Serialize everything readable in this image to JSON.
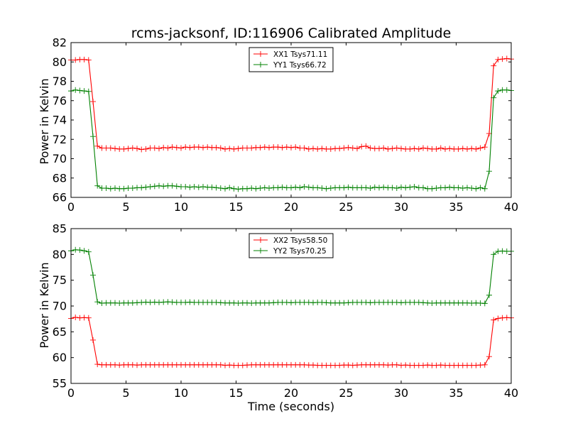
{
  "chart_data": [
    {
      "type": "line",
      "title": "rcms-jacksonf, ID:116906 Calibrated Amplitude",
      "xlabel": "",
      "ylabel": "Power in Kelvin",
      "xlim": [
        0,
        40
      ],
      "ylim": [
        66,
        82
      ],
      "xticks": [
        0,
        5,
        10,
        15,
        20,
        25,
        30,
        35,
        40
      ],
      "yticks": [
        66,
        68,
        70,
        72,
        74,
        76,
        78,
        80,
        82
      ],
      "grid": false,
      "legend": "top-center",
      "marker": "plus",
      "series": [
        {
          "name": "XX1 Tsys71.11",
          "color": "#ff0000",
          "x": [
            0,
            0.4,
            0.8,
            1.2,
            1.6,
            2.0,
            2.4,
            2.8,
            3.2,
            3.6,
            4.0,
            4.4,
            4.8,
            5.2,
            5.6,
            6.0,
            6.4,
            6.8,
            7.2,
            7.6,
            8.0,
            8.4,
            8.8,
            9.2,
            9.6,
            10.0,
            10.4,
            10.8,
            11.2,
            11.6,
            12.0,
            12.4,
            12.8,
            13.2,
            13.6,
            14.0,
            14.4,
            14.8,
            15.2,
            15.6,
            16.0,
            16.4,
            16.8,
            17.2,
            17.6,
            18.0,
            18.4,
            18.8,
            19.2,
            19.6,
            20.0,
            20.4,
            20.8,
            21.2,
            21.6,
            22.0,
            22.4,
            22.8,
            23.2,
            23.6,
            24.0,
            24.4,
            24.8,
            25.2,
            25.6,
            26.0,
            26.4,
            26.8,
            27.2,
            27.6,
            28.0,
            28.4,
            28.8,
            29.2,
            29.6,
            30.0,
            30.4,
            30.8,
            31.2,
            31.6,
            32.0,
            32.4,
            32.8,
            33.2,
            33.6,
            34.0,
            34.4,
            34.8,
            35.2,
            35.6,
            36.0,
            36.4,
            36.8,
            37.2,
            37.6,
            38.0,
            38.4,
            38.8,
            39.2,
            39.6,
            40.0
          ],
          "y": [
            80.2,
            80.2,
            80.25,
            80.25,
            80.2,
            75.9,
            71.3,
            71.1,
            71.1,
            71.1,
            71.05,
            71.0,
            71.0,
            71.05,
            71.1,
            71.05,
            70.95,
            71.0,
            71.1,
            71.1,
            71.05,
            71.15,
            71.1,
            71.2,
            71.15,
            71.1,
            71.2,
            71.15,
            71.2,
            71.2,
            71.15,
            71.2,
            71.15,
            71.15,
            71.1,
            71.0,
            71.05,
            71.0,
            71.05,
            71.1,
            71.1,
            71.1,
            71.15,
            71.15,
            71.2,
            71.15,
            71.2,
            71.2,
            71.15,
            71.2,
            71.15,
            71.2,
            71.1,
            71.1,
            71.0,
            71.05,
            71.0,
            71.05,
            71.0,
            71.0,
            71.05,
            71.05,
            71.1,
            71.15,
            71.1,
            71.05,
            71.25,
            71.3,
            71.1,
            71.05,
            71.05,
            71.1,
            71.0,
            71.05,
            71.1,
            71.05,
            71.0,
            71.0,
            71.05,
            71.0,
            71.1,
            71.05,
            71.0,
            71.0,
            71.1,
            71.0,
            71.05,
            71.0,
            71.0,
            71.05,
            71.0,
            71.05,
            71.0,
            71.1,
            71.2,
            72.6,
            79.6,
            80.25,
            80.3,
            80.35,
            80.3
          ]
        },
        {
          "name": "YY1 Tsys66.72",
          "color": "#008000",
          "x": [
            0,
            0.4,
            0.8,
            1.2,
            1.6,
            2.0,
            2.4,
            2.8,
            3.2,
            3.6,
            4.0,
            4.4,
            4.8,
            5.2,
            5.6,
            6.0,
            6.4,
            6.8,
            7.2,
            7.6,
            8.0,
            8.4,
            8.8,
            9.2,
            9.6,
            10.0,
            10.4,
            10.8,
            11.2,
            11.6,
            12.0,
            12.4,
            12.8,
            13.2,
            13.6,
            14.0,
            14.4,
            14.8,
            15.2,
            15.6,
            16.0,
            16.4,
            16.8,
            17.2,
            17.6,
            18.0,
            18.4,
            18.8,
            19.2,
            19.6,
            20.0,
            20.4,
            20.8,
            21.2,
            21.6,
            22.0,
            22.4,
            22.8,
            23.2,
            23.6,
            24.0,
            24.4,
            24.8,
            25.2,
            25.6,
            26.0,
            26.4,
            26.8,
            27.2,
            27.6,
            28.0,
            28.4,
            28.8,
            29.2,
            29.6,
            30.0,
            30.4,
            30.8,
            31.2,
            31.6,
            32.0,
            32.4,
            32.8,
            33.2,
            33.6,
            34.0,
            34.4,
            34.8,
            35.2,
            35.6,
            36.0,
            36.4,
            36.8,
            37.2,
            37.6,
            38.0,
            38.4,
            38.8,
            39.2,
            39.6,
            40.0
          ],
          "y": [
            77.0,
            77.1,
            77.05,
            77.0,
            76.95,
            72.3,
            67.2,
            66.95,
            66.95,
            66.9,
            66.95,
            66.9,
            66.9,
            66.95,
            66.95,
            67.0,
            67.0,
            67.05,
            67.1,
            67.15,
            67.2,
            67.15,
            67.2,
            67.2,
            67.15,
            67.1,
            67.1,
            67.05,
            67.1,
            67.05,
            67.1,
            67.05,
            67.05,
            67.0,
            66.95,
            66.9,
            67.0,
            66.9,
            66.85,
            66.9,
            66.9,
            66.95,
            66.9,
            66.95,
            67.0,
            66.95,
            67.0,
            67.0,
            67.05,
            67.0,
            67.0,
            67.05,
            67.0,
            67.1,
            67.05,
            67.0,
            67.0,
            66.95,
            66.9,
            66.95,
            67.0,
            67.0,
            67.0,
            67.05,
            67.0,
            67.0,
            67.0,
            67.0,
            66.95,
            67.05,
            67.0,
            67.05,
            67.0,
            67.0,
            66.95,
            67.05,
            67.0,
            67.05,
            67.1,
            67.0,
            67.0,
            66.9,
            66.9,
            66.95,
            67.0,
            67.0,
            67.05,
            67.0,
            67.0,
            66.95,
            67.0,
            66.95,
            66.9,
            67.0,
            66.9,
            68.7,
            76.3,
            77.0,
            77.1,
            77.1,
            77.05
          ]
        }
      ]
    },
    {
      "type": "line",
      "title": "",
      "xlabel": "Time (seconds)",
      "ylabel": "Power in Kelvin",
      "xlim": [
        0,
        40
      ],
      "ylim": [
        55,
        85
      ],
      "xticks": [
        0,
        5,
        10,
        15,
        20,
        25,
        30,
        35,
        40
      ],
      "yticks": [
        55,
        60,
        65,
        70,
        75,
        80,
        85
      ],
      "grid": false,
      "legend": "top-center",
      "marker": "plus",
      "series": [
        {
          "name": "XX2 Tsys58.50",
          "color": "#ff0000",
          "x": [
            0,
            0.4,
            0.8,
            1.2,
            1.6,
            2.0,
            2.4,
            2.8,
            3.2,
            3.6,
            4.0,
            4.4,
            4.8,
            5.2,
            5.6,
            6.0,
            6.4,
            6.8,
            7.2,
            7.6,
            8.0,
            8.4,
            8.8,
            9.2,
            9.6,
            10.0,
            10.4,
            10.8,
            11.2,
            11.6,
            12.0,
            12.4,
            12.8,
            13.2,
            13.6,
            14.0,
            14.4,
            14.8,
            15.2,
            15.6,
            16.0,
            16.4,
            16.8,
            17.2,
            17.6,
            18.0,
            18.4,
            18.8,
            19.2,
            19.6,
            20.0,
            20.4,
            20.8,
            21.2,
            21.6,
            22.0,
            22.4,
            22.8,
            23.2,
            23.6,
            24.0,
            24.4,
            24.8,
            25.2,
            25.6,
            26.0,
            26.4,
            26.8,
            27.2,
            27.6,
            28.0,
            28.4,
            28.8,
            29.2,
            29.6,
            30.0,
            30.4,
            30.8,
            31.2,
            31.6,
            32.0,
            32.4,
            32.8,
            33.2,
            33.6,
            34.0,
            34.4,
            34.8,
            35.2,
            35.6,
            36.0,
            36.4,
            36.8,
            37.2,
            37.6,
            38.0,
            38.4,
            38.8,
            39.2,
            39.6,
            40.0
          ],
          "y": [
            67.6,
            67.8,
            67.7,
            67.75,
            67.7,
            63.4,
            58.7,
            58.6,
            58.6,
            58.6,
            58.6,
            58.55,
            58.6,
            58.6,
            58.6,
            58.55,
            58.6,
            58.6,
            58.6,
            58.6,
            58.6,
            58.6,
            58.6,
            58.6,
            58.6,
            58.6,
            58.6,
            58.6,
            58.6,
            58.6,
            58.6,
            58.6,
            58.6,
            58.6,
            58.6,
            58.5,
            58.55,
            58.5,
            58.5,
            58.5,
            58.55,
            58.6,
            58.6,
            58.6,
            58.6,
            58.6,
            58.6,
            58.6,
            58.6,
            58.6,
            58.6,
            58.6,
            58.6,
            58.6,
            58.55,
            58.55,
            58.5,
            58.5,
            58.5,
            58.5,
            58.5,
            58.5,
            58.55,
            58.55,
            58.5,
            58.55,
            58.6,
            58.6,
            58.6,
            58.6,
            58.6,
            58.6,
            58.55,
            58.6,
            58.6,
            58.5,
            58.55,
            58.5,
            58.5,
            58.5,
            58.5,
            58.55,
            58.5,
            58.5,
            58.55,
            58.5,
            58.5,
            58.5,
            58.5,
            58.5,
            58.5,
            58.5,
            58.5,
            58.55,
            58.6,
            60.2,
            67.3,
            67.6,
            67.7,
            67.75,
            67.7
          ]
        },
        {
          "name": "YY2 Tsys70.25",
          "color": "#008000",
          "x": [
            0,
            0.4,
            0.8,
            1.2,
            1.6,
            2.0,
            2.4,
            2.8,
            3.2,
            3.6,
            4.0,
            4.4,
            4.8,
            5.2,
            5.6,
            6.0,
            6.4,
            6.8,
            7.2,
            7.6,
            8.0,
            8.4,
            8.8,
            9.2,
            9.6,
            10.0,
            10.4,
            10.8,
            11.2,
            11.6,
            12.0,
            12.4,
            12.8,
            13.2,
            13.6,
            14.0,
            14.4,
            14.8,
            15.2,
            15.6,
            16.0,
            16.4,
            16.8,
            17.2,
            17.6,
            18.0,
            18.4,
            18.8,
            19.2,
            19.6,
            20.0,
            20.4,
            20.8,
            21.2,
            21.6,
            22.0,
            22.4,
            22.8,
            23.2,
            23.6,
            24.0,
            24.4,
            24.8,
            25.2,
            25.6,
            26.0,
            26.4,
            26.8,
            27.2,
            27.6,
            28.0,
            28.4,
            28.8,
            29.2,
            29.6,
            30.0,
            30.4,
            30.8,
            31.2,
            31.6,
            32.0,
            32.4,
            32.8,
            33.2,
            33.6,
            34.0,
            34.4,
            34.8,
            35.2,
            35.6,
            36.0,
            36.4,
            36.8,
            37.2,
            37.6,
            38.0,
            38.4,
            38.8,
            39.2,
            39.6,
            40.0
          ],
          "y": [
            80.7,
            80.9,
            80.85,
            80.7,
            80.5,
            76.0,
            70.8,
            70.55,
            70.6,
            70.6,
            70.6,
            70.55,
            70.6,
            70.6,
            70.6,
            70.65,
            70.7,
            70.75,
            70.7,
            70.75,
            70.7,
            70.75,
            70.8,
            70.75,
            70.7,
            70.7,
            70.7,
            70.75,
            70.7,
            70.7,
            70.7,
            70.7,
            70.7,
            70.7,
            70.65,
            70.6,
            70.6,
            70.6,
            70.55,
            70.6,
            70.6,
            70.55,
            70.6,
            70.6,
            70.6,
            70.6,
            70.65,
            70.7,
            70.7,
            70.7,
            70.65,
            70.7,
            70.7,
            70.7,
            70.7,
            70.65,
            70.7,
            70.7,
            70.65,
            70.6,
            70.6,
            70.6,
            70.6,
            70.65,
            70.7,
            70.7,
            70.7,
            70.7,
            70.65,
            70.7,
            70.7,
            70.7,
            70.7,
            70.7,
            70.7,
            70.65,
            70.7,
            70.7,
            70.7,
            70.7,
            70.65,
            70.6,
            70.55,
            70.6,
            70.6,
            70.6,
            70.6,
            70.6,
            70.6,
            70.6,
            70.6,
            70.55,
            70.6,
            70.55,
            70.5,
            72.1,
            80.0,
            80.6,
            80.65,
            80.6,
            80.6
          ]
        }
      ]
    }
  ]
}
